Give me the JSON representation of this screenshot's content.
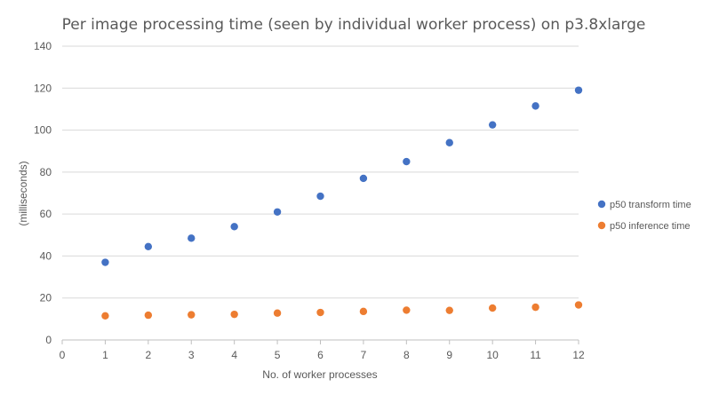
{
  "chart_data": {
    "type": "scatter",
    "title": "Per image processing time (seen by individual worker process)  on p3.8xlarge",
    "xlabel": "No. of worker processes",
    "ylabel": "(milliseconds)",
    "xlim": [
      0,
      12
    ],
    "ylim": [
      0,
      140
    ],
    "xticks": [
      0,
      1,
      2,
      3,
      4,
      5,
      6,
      7,
      8,
      9,
      10,
      11,
      12
    ],
    "yticks": [
      0,
      20,
      40,
      60,
      80,
      100,
      120,
      140
    ],
    "grid": "horizontal",
    "legend_position": "right",
    "series": [
      {
        "name": "p50 transform time",
        "color": "#4472c4",
        "x": [
          1,
          2,
          3,
          4,
          5,
          6,
          7,
          8,
          9,
          10,
          11,
          12
        ],
        "y": [
          37,
          44.5,
          48.5,
          54,
          61,
          68.5,
          77,
          85,
          94,
          102.5,
          111.5,
          119
        ]
      },
      {
        "name": "p50 inference time",
        "color": "#ed7d31",
        "x": [
          1,
          2,
          3,
          4,
          5,
          6,
          7,
          8,
          9,
          10,
          11,
          12
        ],
        "y": [
          11.5,
          11.8,
          12,
          12.2,
          12.8,
          13.1,
          13.6,
          14.2,
          14.1,
          15.2,
          15.6,
          16.7
        ]
      }
    ]
  }
}
